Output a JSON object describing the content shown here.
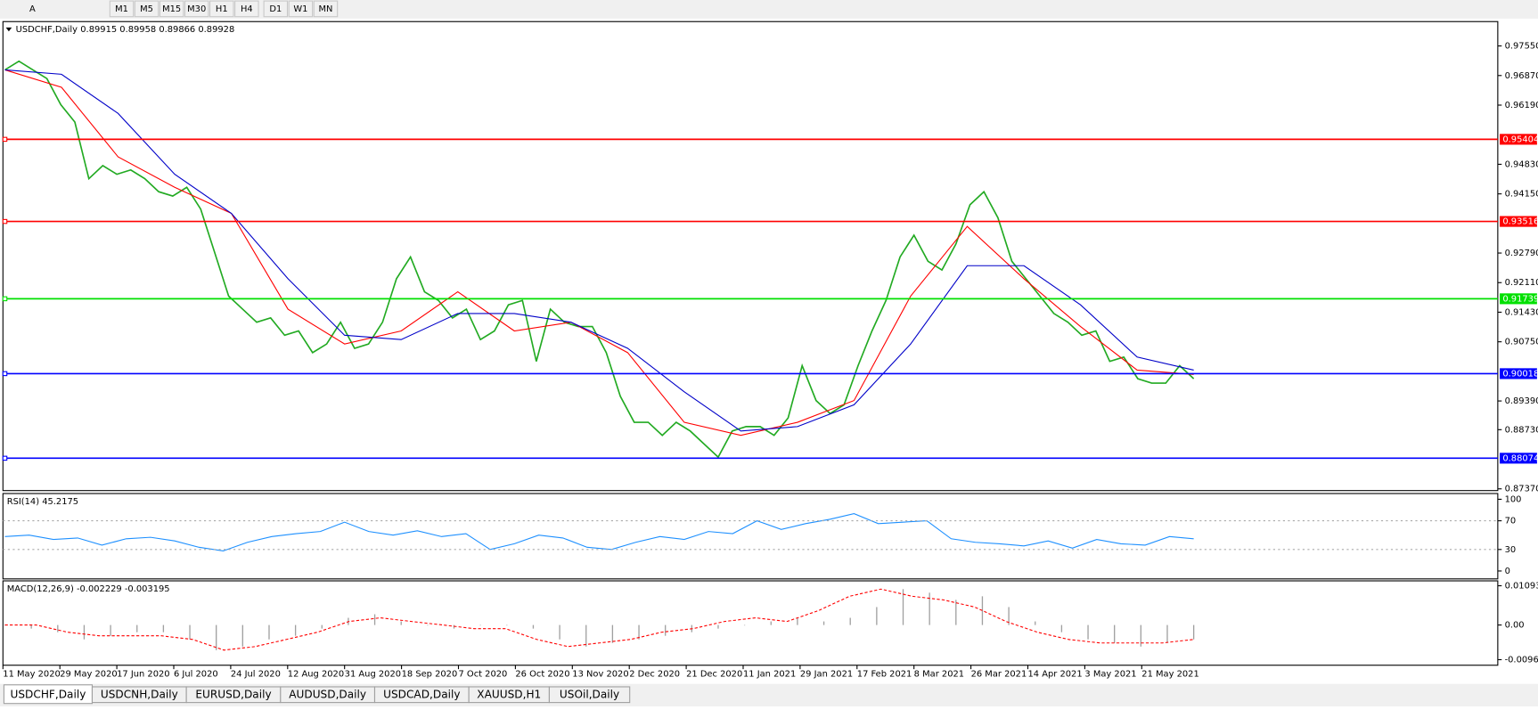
{
  "toolbar": {
    "text_tool": "A",
    "timeframes": [
      "M1",
      "M5",
      "M15",
      "M30",
      "H1",
      "H4",
      "D1",
      "W1",
      "MN"
    ]
  },
  "chart_data": [
    {
      "type": "line",
      "title": "USDCHF,Daily",
      "subtitle": "0.89915 0.89958 0.89866 0.89928",
      "ylim": [
        0.8733,
        0.9811
      ],
      "yticks": [
        {
          "value": 0.9755,
          "label": "0.97550"
        },
        {
          "value": 0.9687,
          "label": "0.96870"
        },
        {
          "value": 0.9619,
          "label": "0.96190"
        },
        {
          "value": 0.9483,
          "label": "0.94830"
        },
        {
          "value": 0.9415,
          "label": "0.94150"
        },
        {
          "value": 0.9279,
          "label": "0.92790"
        },
        {
          "value": 0.9211,
          "label": "0.92110"
        },
        {
          "value": 0.9143,
          "label": "0.91430"
        },
        {
          "value": 0.9075,
          "label": "0.90750"
        },
        {
          "value": 0.8939,
          "label": "0.89390"
        },
        {
          "value": 0.8873,
          "label": "0.88730"
        },
        {
          "value": 0.8737,
          "label": "0.87370"
        }
      ],
      "levels": [
        {
          "value": 0.95404,
          "label": "0.95404",
          "color": "#ff0000"
        },
        {
          "value": 0.93516,
          "label": "0.93516",
          "color": "#ff0000"
        },
        {
          "value": 0.91739,
          "label": "0.91739",
          "color": "#00e000"
        },
        {
          "value": 0.90018,
          "label": "0.90018",
          "color": "#0000ff"
        },
        {
          "value": 0.88074,
          "label": "0.88074",
          "color": "#0000ff"
        }
      ],
      "x_labels": [
        "11 May 2020",
        "29 May 2020",
        "17 Jun 2020",
        "6 Jul 2020",
        "24 Jul 2020",
        "12 Aug 2020",
        "31 Aug 2020",
        "18 Sep 2020",
        "7 Oct 2020",
        "26 Oct 2020",
        "13 Nov 2020",
        "2 Dec 2020",
        "21 Dec 2020",
        "11 Jan 2021",
        "29 Jan 2021",
        "17 Feb 2021",
        "8 Mar 2021",
        "26 Mar 2021",
        "14 Apr 2021",
        "3 May 2021",
        "21 May 2021"
      ],
      "series": [
        {
          "color": "#22aa22",
          "values": [
            0.97,
            0.972,
            0.97,
            0.968,
            0.962,
            0.958,
            0.945,
            0.948,
            0.946,
            0.947,
            0.945,
            0.942,
            0.941,
            0.943,
            0.938,
            0.928,
            0.918,
            0.915,
            0.912,
            0.913,
            0.909,
            0.91,
            0.905,
            0.907,
            0.912,
            0.906,
            0.907,
            0.912,
            0.922,
            0.927,
            0.919,
            0.917,
            0.913,
            0.915,
            0.908,
            0.91,
            0.916,
            0.917,
            0.903,
            0.915,
            0.912,
            0.911,
            0.911,
            0.905,
            0.895,
            0.889,
            0.889,
            0.886,
            0.889,
            0.887,
            0.884,
            0.881,
            0.887,
            0.888,
            0.888,
            0.886,
            0.89,
            0.902,
            0.894,
            0.891,
            0.893,
            0.902,
            0.91,
            0.917,
            0.927,
            0.932,
            0.926,
            0.924,
            0.93,
            0.939,
            0.942,
            0.936,
            0.926,
            0.922,
            0.918,
            0.914,
            0.912,
            0.909,
            0.91,
            0.903,
            0.904,
            0.899,
            0.898,
            0.898,
            0.902,
            0.899
          ]
        },
        {
          "color": "#ff0000",
          "values": [
            0.97,
            0.966,
            0.95,
            0.943,
            0.937,
            0.915,
            0.907,
            0.91,
            0.919,
            0.91,
            0.912,
            0.905,
            0.889,
            0.886,
            0.889,
            0.894,
            0.918,
            0.934,
            0.922,
            0.911,
            0.901,
            0.9
          ]
        },
        {
          "color": "#0000c8",
          "values": [
            0.97,
            0.969,
            0.96,
            0.946,
            0.937,
            0.922,
            0.909,
            0.908,
            0.914,
            0.914,
            0.912,
            0.906,
            0.896,
            0.887,
            0.888,
            0.893,
            0.907,
            0.925,
            0.925,
            0.916,
            0.904,
            0.901
          ]
        }
      ]
    },
    {
      "type": "line",
      "title": "RSI(14) 45.2175",
      "ylim": [
        -11,
        108
      ],
      "yticks": [
        100,
        70,
        30,
        0
      ],
      "levels": [
        70,
        30
      ],
      "series": [
        {
          "color": "#1e90ff",
          "values": [
            48,
            50,
            44,
            46,
            36,
            45,
            47,
            42,
            33,
            28,
            40,
            48,
            52,
            55,
            68,
            55,
            50,
            56,
            48,
            52,
            30,
            38,
            50,
            46,
            33,
            30,
            40,
            48,
            44,
            55,
            52,
            70,
            58,
            66,
            72,
            80,
            66,
            68,
            70,
            45,
            40,
            38,
            35,
            42,
            32,
            44,
            38,
            36,
            48,
            45
          ]
        }
      ]
    },
    {
      "type": "bar",
      "title": "MACD(12,26,9) -0.002229 -0.003195",
      "ylim": [
        -0.0112,
        0.0123
      ],
      "yticks": [
        0.010933,
        {
          "value": 0,
          "label": "0.00"
        },
        -0.009653
      ],
      "color": "#a0a0a0",
      "values": [
        0.0,
        -0.001,
        -0.002,
        -0.004,
        -0.003,
        -0.002,
        -0.002,
        -0.004,
        -0.007,
        -0.006,
        -0.004,
        -0.003,
        -0.001,
        0.002,
        0.003,
        0.001,
        0.0,
        -0.001,
        0.0,
        0.0,
        -0.001,
        -0.004,
        -0.006,
        -0.005,
        -0.004,
        -0.003,
        -0.002,
        -0.001,
        0.0,
        0.001,
        0.002,
        0.001,
        0.002,
        0.005,
        0.01,
        0.009,
        0.007,
        0.008,
        0.005,
        0.001,
        -0.002,
        -0.004,
        -0.005,
        -0.006,
        -0.005,
        -0.004
      ],
      "signal": {
        "color": "#ff0000",
        "values": [
          0.0,
          0.0,
          -0.002,
          -0.003,
          -0.003,
          -0.003,
          -0.004,
          -0.007,
          -0.006,
          -0.004,
          -0.002,
          0.001,
          0.002,
          0.001,
          0.0,
          -0.001,
          -0.001,
          -0.004,
          -0.006,
          -0.005,
          -0.004,
          -0.002,
          -0.001,
          0.001,
          0.002,
          0.001,
          0.004,
          0.008,
          0.01,
          0.008,
          0.007,
          0.005,
          0.001,
          -0.002,
          -0.004,
          -0.005,
          -0.005,
          -0.005,
          -0.004
        ]
      }
    }
  ],
  "tabs": [
    "USDCHF,Daily",
    "USDCNH,Daily",
    "EURUSD,Daily",
    "AUDUSD,Daily",
    "USDCAD,Daily",
    "XAUUSD,H1",
    "USOil,Daily"
  ]
}
